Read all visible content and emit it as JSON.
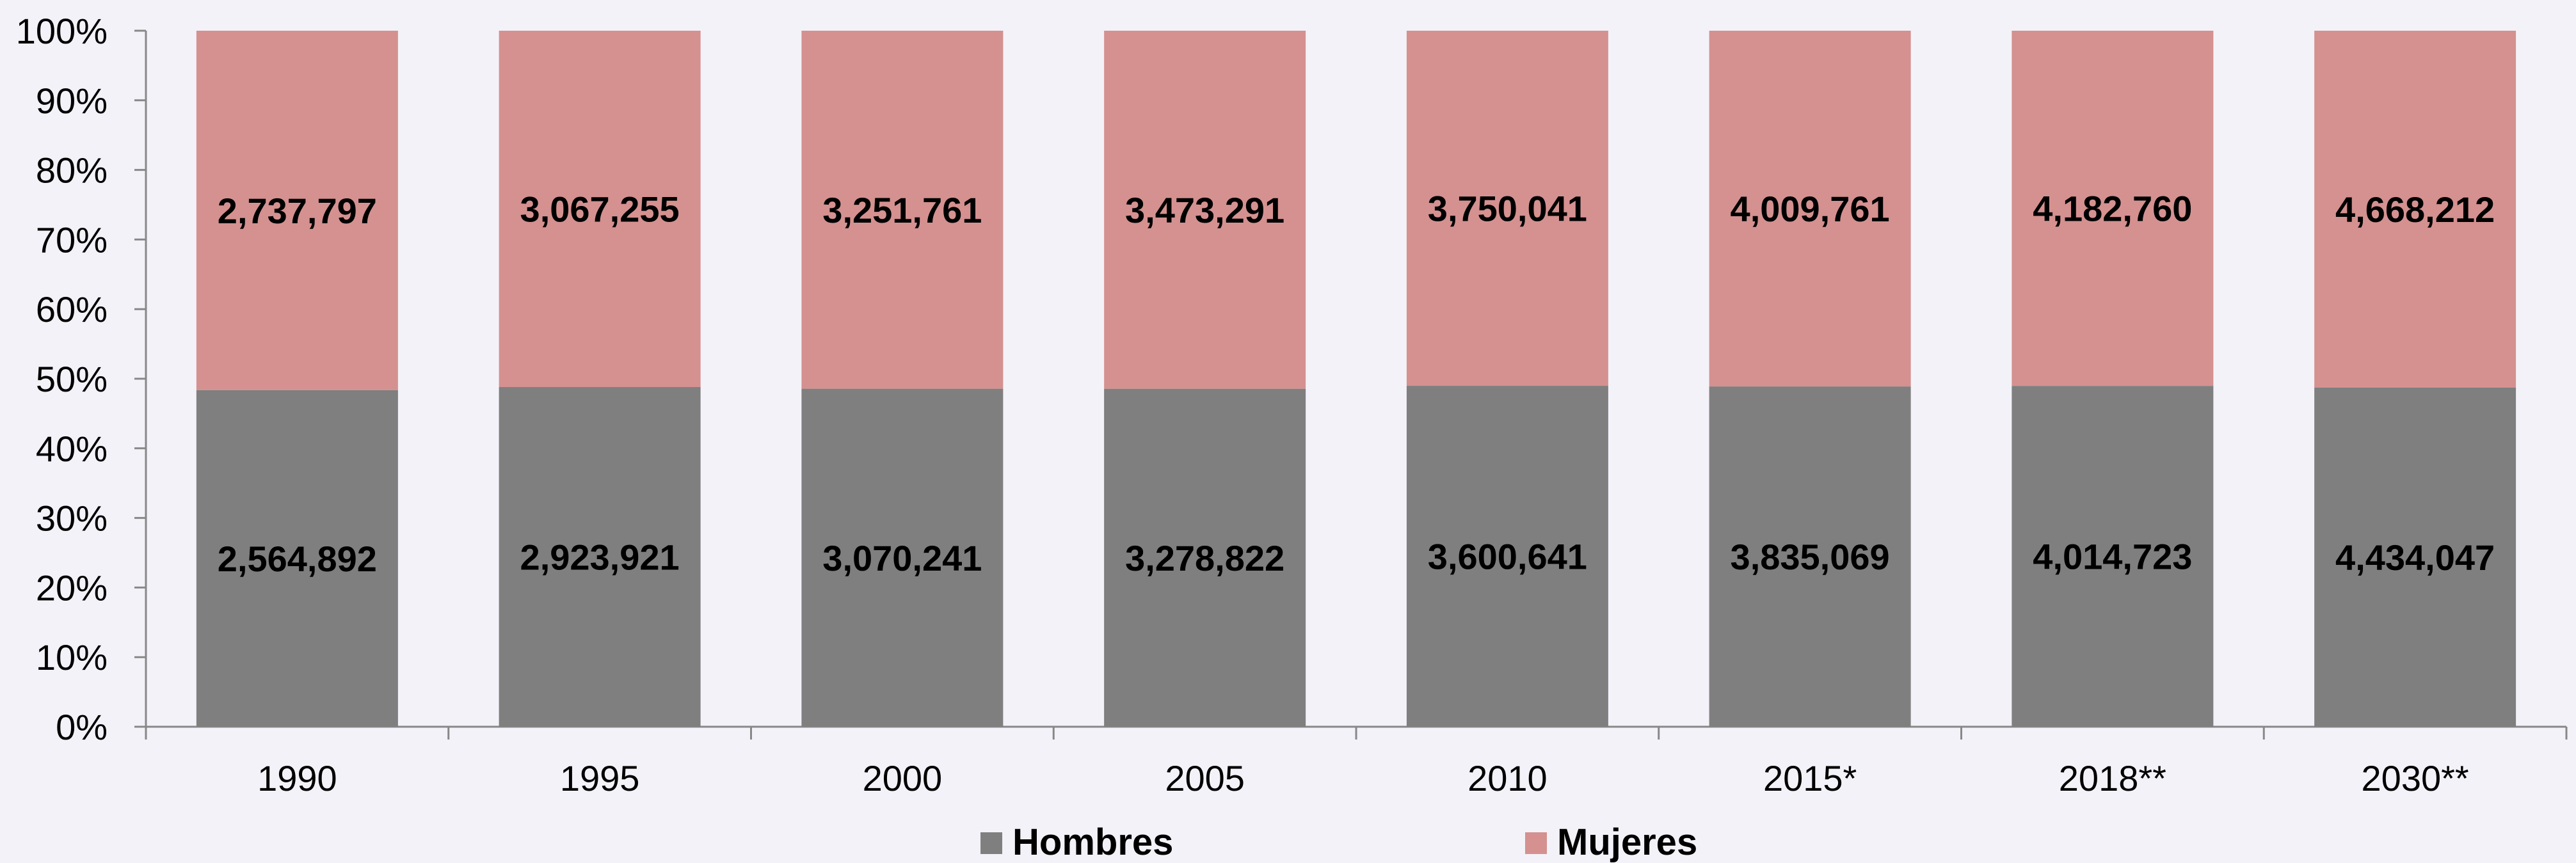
{
  "chart_data": {
    "type": "bar",
    "stacked": true,
    "normalized": true,
    "categories": [
      "1990",
      "1995",
      "2000",
      "2005",
      "2010",
      "2015*",
      "2018**",
      "2030**"
    ],
    "series": [
      {
        "name": "Hombres",
        "color": "#7f7f7f",
        "values": [
          2564892,
          2923921,
          3070241,
          3278822,
          3600641,
          3835069,
          4014723,
          4434047
        ],
        "labels": [
          "2,564,892",
          "2,923,921",
          "3,070,241",
          "3,278,822",
          "3,600,641",
          "3,835,069",
          "4,014,723",
          "4,434,047"
        ]
      },
      {
        "name": "Mujeres",
        "color": "#d49190",
        "values": [
          2737797,
          3067255,
          3251761,
          3473291,
          3750041,
          4009761,
          4182760,
          4668212
        ],
        "labels": [
          "2,737,797",
          "3,067,255",
          "3,251,761",
          "3,473,291",
          "3,750,041",
          "4,009,761",
          "4,182,760",
          "4,668,212"
        ]
      }
    ],
    "yticks": [
      "0%",
      "10%",
      "20%",
      "30%",
      "40%",
      "50%",
      "60%",
      "70%",
      "80%",
      "90%",
      "100%"
    ],
    "ylim": [
      0,
      100
    ],
    "grid": false,
    "legend_position": "bottom"
  }
}
